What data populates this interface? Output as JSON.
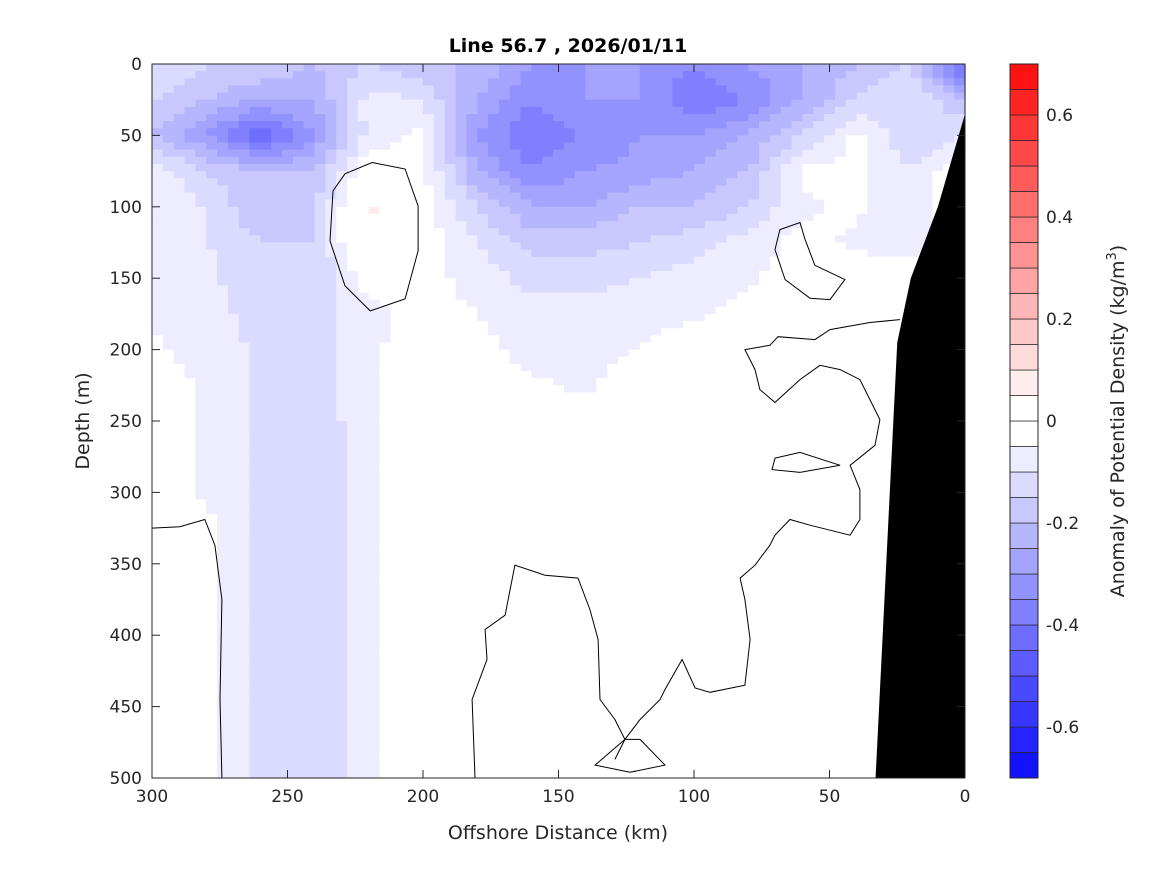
{
  "chart_data": {
    "type": "heatmap",
    "subtype": "filled-contour",
    "title": "Line 56.7 , 2026/01/11",
    "xlabel": "Offshore Distance (km)",
    "ylabel": "Depth (m)",
    "colorbar_label": "Anomaly of Potential Density (kg/m",
    "colorbar_label_sup": "3",
    "colorbar_label_end": ")",
    "xlim": [
      300,
      0
    ],
    "ylim": [
      0,
      500
    ],
    "x_reversed": true,
    "y_reversed": true,
    "xticks": [
      300,
      250,
      200,
      150,
      100,
      50,
      0
    ],
    "yticks": [
      0,
      50,
      100,
      150,
      200,
      250,
      300,
      350,
      400,
      450,
      500
    ],
    "clim": [
      -0.7,
      0.7
    ],
    "level_step": 0.05,
    "cticks": [
      "-0.6",
      "-0.4",
      "-0.2",
      "0",
      "0.2",
      "0.4",
      "0.6"
    ],
    "cticks_values": [
      -0.6,
      -0.4,
      -0.2,
      0,
      0.2,
      0.4,
      0.6
    ],
    "colors": {
      "negative": "#0000ff",
      "positive": "#ff0000",
      "zero": "#ffffff",
      "land": "#000000"
    },
    "grid_x_km": [
      300,
      280,
      260,
      240,
      220,
      200,
      180,
      160,
      140,
      120,
      100,
      80,
      60,
      40,
      20,
      0
    ],
    "grid_depth_m": [
      0,
      25,
      50,
      75,
      100,
      125,
      150,
      175,
      200,
      225,
      250,
      275,
      300,
      325,
      350,
      375,
      400,
      425,
      450,
      475,
      500
    ],
    "values": [
      [
        -0.1,
        -0.15,
        -0.15,
        -0.2,
        -0.15,
        -0.2,
        -0.2,
        -0.3,
        -0.3,
        -0.3,
        -0.35,
        -0.3,
        -0.25,
        -0.2,
        -0.15,
        -0.45
      ],
      [
        -0.15,
        -0.2,
        -0.25,
        -0.25,
        -0.08,
        -0.1,
        -0.25,
        -0.35,
        -0.3,
        -0.3,
        -0.4,
        -0.35,
        -0.25,
        -0.15,
        -0.1,
        -0.2
      ],
      [
        -0.2,
        -0.3,
        -0.45,
        -0.3,
        -0.08,
        -0.04,
        -0.3,
        -0.4,
        -0.35,
        -0.3,
        -0.3,
        -0.25,
        -0.15,
        -0.04,
        -0.15,
        -0.1
      ],
      [
        -0.06,
        -0.15,
        -0.2,
        -0.2,
        0.0,
        -0.04,
        -0.25,
        -0.35,
        -0.3,
        -0.28,
        -0.25,
        -0.2,
        -0.04,
        -0.03,
        -0.1,
        0
      ],
      [
        -0.06,
        -0.1,
        -0.2,
        -0.15,
        0.06,
        -0.02,
        -0.15,
        -0.25,
        -0.25,
        -0.2,
        -0.2,
        -0.15,
        -0.06,
        -0.04,
        -0.1,
        0
      ],
      [
        -0.06,
        -0.1,
        -0.15,
        -0.15,
        0.05,
        -0.02,
        -0.1,
        -0.17,
        -0.17,
        -0.15,
        -0.12,
        -0.08,
        -0.03,
        -0.06,
        -0.08,
        0
      ],
      [
        -0.06,
        -0.08,
        -0.15,
        -0.15,
        -0.02,
        -0.03,
        -0.07,
        -0.12,
        -0.12,
        -0.1,
        -0.08,
        -0.06,
        -0.02,
        -0.02,
        0,
        0
      ],
      [
        -0.06,
        -0.08,
        -0.12,
        -0.13,
        -0.07,
        -0.03,
        -0.05,
        -0.08,
        -0.08,
        -0.07,
        -0.06,
        -0.03,
        -0.01,
        -0.01,
        0,
        0
      ],
      [
        -0.04,
        -0.07,
        -0.11,
        -0.13,
        -0.06,
        -0.02,
        -0.03,
        -0.07,
        -0.07,
        -0.05,
        -0.02,
        0,
        0,
        0,
        0,
        0
      ],
      [
        -0.02,
        -0.06,
        -0.11,
        -0.13,
        -0.06,
        -0.01,
        -0.02,
        -0.04,
        -0.06,
        -0.02,
        0,
        0,
        0,
        0,
        0,
        0
      ],
      [
        -0.01,
        -0.06,
        -0.11,
        -0.14,
        -0.06,
        0,
        -0.01,
        -0.02,
        -0.02,
        -0.01,
        0,
        0,
        0,
        0,
        0,
        0
      ],
      [
        -0.02,
        -0.06,
        -0.11,
        -0.15,
        -0.06,
        0,
        0,
        0,
        0,
        0,
        0,
        0,
        0,
        0,
        0,
        0
      ],
      [
        -0.02,
        -0.06,
        -0.11,
        -0.15,
        -0.06,
        0,
        0,
        0,
        0,
        0,
        0,
        0,
        0,
        0,
        0,
        0
      ],
      [
        0.01,
        -0.03,
        -0.11,
        -0.15,
        -0.06,
        0,
        0,
        0,
        0,
        0,
        0,
        0,
        0,
        0,
        0,
        0
      ],
      [
        0.01,
        -0.03,
        -0.11,
        -0.15,
        -0.06,
        0,
        0,
        0,
        0,
        0,
        0,
        0,
        0,
        0,
        0,
        0
      ],
      [
        0.01,
        -0.03,
        -0.11,
        -0.15,
        -0.06,
        0,
        0,
        0,
        0,
        0,
        0,
        0,
        0,
        0,
        0,
        0
      ],
      [
        0.01,
        -0.03,
        -0.11,
        -0.15,
        -0.06,
        0,
        0,
        0,
        0,
        0,
        0,
        0,
        0,
        0,
        0,
        0
      ],
      [
        0.01,
        -0.03,
        -0.11,
        -0.15,
        -0.06,
        0,
        0,
        0,
        0,
        0,
        0,
        0,
        0,
        0,
        0,
        0
      ],
      [
        0.01,
        -0.03,
        -0.11,
        -0.15,
        -0.06,
        0,
        0,
        0,
        0,
        0,
        0,
        0,
        0,
        0,
        0,
        0
      ],
      [
        0.01,
        -0.03,
        -0.11,
        -0.15,
        -0.06,
        0,
        0,
        0,
        0,
        0,
        0,
        0,
        0,
        0,
        0,
        0
      ],
      [
        0.01,
        -0.03,
        -0.11,
        -0.15,
        -0.06,
        0,
        0,
        0,
        0,
        0,
        0,
        0,
        0,
        0,
        0,
        0
      ]
    ],
    "zero_contours": [
      {
        "closed": true,
        "points": [
          [
            218.8,
            69
          ],
          [
            206.6,
            73.5
          ],
          [
            201.8,
            99.4
          ],
          [
            201.8,
            130.9
          ],
          [
            206.6,
            164.5
          ],
          [
            219.5,
            172.9
          ],
          [
            228.8,
            155.4
          ],
          [
            234.3,
            123.9
          ],
          [
            233.2,
            88.9
          ],
          [
            228.8,
            76.9
          ]
        ]
      },
      {
        "closed": false,
        "points": [
          [
            300,
            325
          ],
          [
            289.7,
            324
          ],
          [
            280.5,
            319
          ],
          [
            276.8,
            337
          ],
          [
            274.2,
            375
          ],
          [
            274.9,
            445
          ],
          [
            274.2,
            500
          ]
        ]
      },
      {
        "closed": false,
        "points": [
          [
            180.8,
            500
          ],
          [
            181.9,
            445
          ],
          [
            176.4,
            417
          ],
          [
            177.1,
            396
          ],
          [
            169.7,
            386
          ],
          [
            166.1,
            351
          ],
          [
            155,
            358
          ],
          [
            142.8,
            360
          ],
          [
            138.4,
            382
          ],
          [
            135.4,
            403
          ],
          [
            134.7,
            445
          ],
          [
            129.2,
            459
          ],
          [
            125.5,
            473
          ],
          [
            136.5,
            491
          ],
          [
            123.6,
            496
          ],
          [
            110.7,
            491
          ],
          [
            119.9,
            473
          ],
          [
            125.5,
            473
          ]
        ]
      },
      {
        "closed": false,
        "points": [
          [
            24,
            179
          ],
          [
            35.1,
            181
          ],
          [
            49.8,
            186
          ],
          [
            55.4,
            193
          ],
          [
            69,
            191
          ],
          [
            72,
            197
          ],
          [
            81.2,
            200
          ],
          [
            77.5,
            214
          ],
          [
            75.7,
            228
          ],
          [
            70.1,
            237
          ],
          [
            60.9,
            221
          ],
          [
            53.5,
            211
          ],
          [
            46.1,
            214
          ],
          [
            38.8,
            221
          ],
          [
            35.1,
            235
          ],
          [
            31.4,
            249
          ],
          [
            33.2,
            267
          ],
          [
            42.4,
            281
          ],
          [
            38.8,
            298
          ],
          [
            38.8,
            319
          ],
          [
            42.4,
            330
          ],
          [
            57.2,
            323
          ],
          [
            64.6,
            319
          ],
          [
            70.1,
            330
          ],
          [
            72,
            337
          ],
          [
            77.5,
            351
          ],
          [
            83,
            360
          ],
          [
            81.2,
            375
          ],
          [
            79.3,
            403
          ],
          [
            81.2,
            435
          ],
          [
            94.1,
            440
          ],
          [
            99.6,
            437
          ],
          [
            104.4,
            417
          ],
          [
            110.7,
            438
          ],
          [
            112.5,
            445
          ],
          [
            119.9,
            459
          ],
          [
            125.5,
            473
          ],
          [
            129.2,
            487
          ]
        ]
      },
      {
        "closed": true,
        "points": [
          [
            68.3,
            116
          ],
          [
            60.9,
            111
          ],
          [
            59,
            123
          ],
          [
            55.4,
            141
          ],
          [
            44.3,
            151
          ],
          [
            49.8,
            165
          ],
          [
            57.2,
            164
          ],
          [
            66.4,
            151
          ],
          [
            70.1,
            130
          ]
        ]
      },
      {
        "closed": true,
        "points": [
          [
            70.1,
            276
          ],
          [
            60.9,
            272
          ],
          [
            46.1,
            281
          ],
          [
            60.9,
            286
          ],
          [
            71.2,
            284
          ]
        ]
      }
    ],
    "bathymetry": [
      [
        0,
        35
      ],
      [
        10,
        100
      ],
      [
        20,
        150
      ],
      [
        25,
        195
      ],
      [
        33,
        500
      ]
    ]
  }
}
